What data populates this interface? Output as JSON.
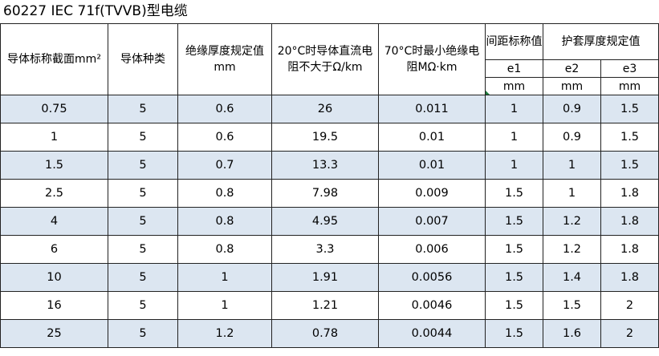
{
  "title": "60227 IEC 71f(TVVB)型电缆",
  "header": {
    "cross_section": "导体标称截面mm²",
    "conductor_type": "导体种类",
    "insulation_thickness": "绝缘厚度规定值mm",
    "resistance_20c": "20°C时导体直流电阻不大于Ω/km",
    "insulation_resistance_70c": "70°C时最小绝缘电阻MΩ·km",
    "spacing_nominal": "间距标称值",
    "sheath_thickness": "护套厚度规定值",
    "e1": "e1",
    "e2": "e2",
    "e3": "e3",
    "unit_e1": "mm",
    "unit_e2": "mm",
    "unit_e3": "mm"
  },
  "rows": [
    [
      "0.75",
      "5",
      "0.6",
      "26",
      "0.011",
      "1",
      "0.9",
      "1.5"
    ],
    [
      "1",
      "5",
      "0.6",
      "19.5",
      "0.01",
      "1",
      "0.9",
      "1.5"
    ],
    [
      "1.5",
      "5",
      "0.7",
      "13.3",
      "0.01",
      "1",
      "1",
      "1.5"
    ],
    [
      "2.5",
      "5",
      "0.8",
      "7.98",
      "0.009",
      "1.5",
      "1",
      "1.8"
    ],
    [
      "4",
      "5",
      "0.8",
      "4.95",
      "0.007",
      "1.5",
      "1.2",
      "1.8"
    ],
    [
      "6",
      "5",
      "0.8",
      "3.3",
      "0.006",
      "1.5",
      "1.2",
      "1.8"
    ],
    [
      "10",
      "5",
      "1",
      "1.91",
      "0.0056",
      "1.5",
      "1.4",
      "1.8"
    ],
    [
      "16",
      "5",
      "1",
      "1.21",
      "0.0046",
      "1.5",
      "1.5",
      "2"
    ],
    [
      "25",
      "5",
      "1.2",
      "0.78",
      "0.0044",
      "1.5",
      "1.6",
      "2"
    ]
  ],
  "shaded_color": "#dce6f1"
}
